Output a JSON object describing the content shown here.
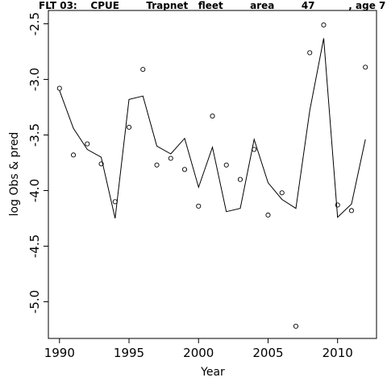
{
  "chart_data": {
    "type": "line",
    "title": "FLT 03:    CPUE        Trapnet   fleet        area        47          , age 7",
    "xlabel": "Year",
    "ylabel": "log Obs & pred",
    "xlim": [
      1989.2,
      2012.8
    ],
    "ylim": [
      -5.33,
      -2.38
    ],
    "x_ticks": [
      1990,
      1995,
      2000,
      2005,
      2010
    ],
    "x_tick_labels": [
      "1990",
      "1995",
      "2000",
      "2005",
      "2010"
    ],
    "y_ticks": [
      -2.5,
      -3.0,
      -3.5,
      -4.0,
      -4.5,
      -5.0
    ],
    "y_tick_labels": [
      "-2.5",
      "-3.0",
      "-3.5",
      "-4.0",
      "-4.5",
      "-5.0"
    ],
    "grid": false,
    "series": [
      {
        "style": "points",
        "marker": "open-circle",
        "x": [
          1990,
          1991,
          1992,
          1993,
          1994,
          1995,
          1996,
          1997,
          1998,
          1999,
          2000,
          2001,
          2002,
          2003,
          2004,
          2005,
          2006,
          2007,
          2008,
          2009,
          2010,
          2011,
          2012
        ],
        "values": [
          -3.08,
          -3.68,
          -3.58,
          -3.76,
          -4.1,
          -3.43,
          -2.91,
          -3.77,
          -3.71,
          -3.81,
          -4.14,
          -3.33,
          -3.77,
          -3.9,
          -3.63,
          -4.22,
          -4.02,
          -5.22,
          -2.76,
          -2.51,
          -4.13,
          -4.18,
          -2.89
        ]
      },
      {
        "style": "line",
        "x": [
          1990,
          1991,
          1992,
          1993,
          1994,
          1995,
          1996,
          1997,
          1998,
          1999,
          2000,
          2001,
          2002,
          2003,
          2004,
          2005,
          2006,
          2007,
          2008,
          2009,
          2010,
          2011,
          2012
        ],
        "values": [
          -3.1,
          -3.44,
          -3.63,
          -3.7,
          -4.25,
          -3.18,
          -3.15,
          -3.6,
          -3.67,
          -3.53,
          -3.97,
          -3.61,
          -4.19,
          -4.16,
          -3.54,
          -3.93,
          -4.08,
          -4.16,
          -3.28,
          -2.63,
          -4.24,
          -4.12,
          -3.54
        ]
      }
    ]
  }
}
